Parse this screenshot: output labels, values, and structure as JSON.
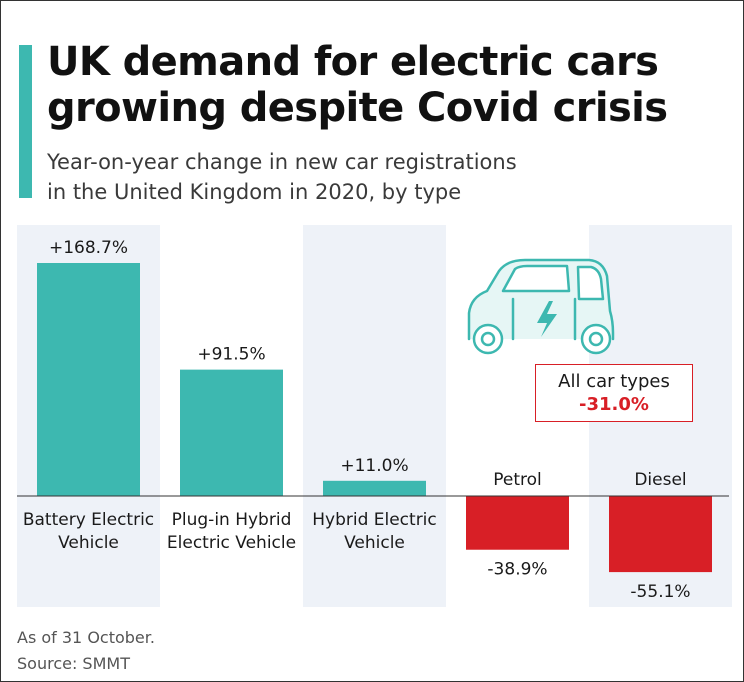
{
  "title_lines": [
    "UK demand for electric cars",
    "growing despite Covid crisis"
  ],
  "subtitle_lines": [
    "Year-on-year change in new car registrations",
    "in the United Kingdom in 2020, by type"
  ],
  "callout": {
    "label": "All car types",
    "value": "-31.0%"
  },
  "footnote": {
    "note": "As of 31 October.",
    "source": "Source: SMMT"
  },
  "colors": {
    "accent": "#3db8b0",
    "positive": "#3db8b0",
    "negative": "#d81f26",
    "column_shade": "#eef2f8",
    "car_icon": "#3db8b0"
  },
  "icons": [
    "electric-car-icon"
  ],
  "chart_data": {
    "type": "bar",
    "title": "UK demand for electric cars growing despite Covid crisis",
    "subtitle": "Year-on-year change in new car registrations in the United Kingdom in 2020, by type",
    "categories": [
      [
        "Battery Electric",
        "Vehicle"
      ],
      [
        "Plug-in Hybrid",
        "Electric Vehicle"
      ],
      [
        "Hybrid Electric",
        "Vehicle"
      ],
      [
        "Petrol"
      ],
      [
        "Diesel"
      ]
    ],
    "values": [
      168.7,
      91.5,
      11.0,
      -38.9,
      -55.1
    ],
    "value_labels": [
      "+168.7%",
      "+91.5%",
      "+11.0%",
      "-38.9%",
      "-55.1%"
    ],
    "ylim": [
      -55.1,
      168.7
    ],
    "grid": false,
    "baseline": 0,
    "annotation": {
      "label": "All car types",
      "value": -31.0
    }
  }
}
